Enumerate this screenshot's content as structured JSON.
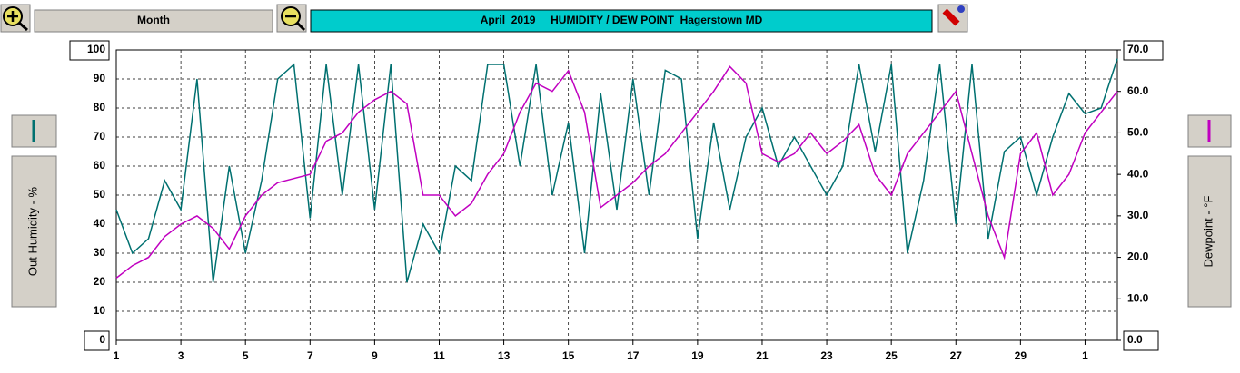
{
  "ui": {
    "period_button": "Month"
  },
  "chart_data": {
    "type": "line",
    "title": "April  2019     HUMIDITY / DEW POINT  Hagerstown MD",
    "y_label": "Out Humidity - %",
    "y2_label": "Dewpoint - °F",
    "grid": true,
    "xlim": [
      0,
      31
    ],
    "xticks": [
      {
        "value": 0,
        "label": "1"
      },
      {
        "value": 2,
        "label": "3"
      },
      {
        "value": 4,
        "label": "5"
      },
      {
        "value": 6,
        "label": "7"
      },
      {
        "value": 8,
        "label": "9"
      },
      {
        "value": 10,
        "label": "11"
      },
      {
        "value": 12,
        "label": "13"
      },
      {
        "value": 14,
        "label": "15"
      },
      {
        "value": 16,
        "label": "17"
      },
      {
        "value": 18,
        "label": "19"
      },
      {
        "value": 20,
        "label": "21"
      },
      {
        "value": 22,
        "label": "23"
      },
      {
        "value": 24,
        "label": "25"
      },
      {
        "value": 26,
        "label": "27"
      },
      {
        "value": 28,
        "label": "29"
      },
      {
        "value": 30,
        "label": "1"
      }
    ],
    "ylim": [
      0,
      100
    ],
    "yticks": [
      0,
      10,
      20,
      30,
      40,
      50,
      60,
      70,
      80,
      90,
      100
    ],
    "y2lim": [
      0,
      70
    ],
    "y2ticks": [
      {
        "value": 0,
        "label": "0.0"
      },
      {
        "value": 10,
        "label": "10.0"
      },
      {
        "value": 20,
        "label": "20.0"
      },
      {
        "value": 30,
        "label": "30.0"
      },
      {
        "value": 40,
        "label": "40.0"
      },
      {
        "value": 50,
        "label": "50.0"
      },
      {
        "value": 60,
        "label": "60.0"
      },
      {
        "value": 70,
        "label": "70.0"
      }
    ],
    "x": [
      0,
      0.5,
      1,
      1.5,
      2,
      2.5,
      3,
      3.5,
      4,
      4.5,
      5,
      5.5,
      6,
      6.5,
      7,
      7.5,
      8,
      8.5,
      9,
      9.5,
      10,
      10.5,
      11,
      11.5,
      12,
      12.5,
      13,
      13.5,
      14,
      14.5,
      15,
      15.5,
      16,
      16.5,
      17,
      17.5,
      18,
      18.5,
      19,
      19.5,
      20,
      20.5,
      21,
      21.5,
      22,
      22.5,
      23,
      23.5,
      24,
      24.5,
      25,
      25.5,
      26,
      26.5,
      27,
      27.5,
      28,
      28.5,
      29,
      29.5,
      30,
      30.5,
      31
    ],
    "series": [
      {
        "name": "Out Humidity",
        "color": "#007070",
        "values": [
          45,
          30,
          35,
          55,
          45,
          90,
          20,
          60,
          30,
          55,
          90,
          95,
          42,
          95,
          50,
          95,
          45,
          95,
          20,
          40,
          30,
          60,
          55,
          95,
          95,
          60,
          95,
          50,
          75,
          30,
          85,
          45,
          90,
          50,
          93,
          90,
          35,
          75,
          45,
          70,
          80,
          60,
          70,
          60,
          50,
          60,
          95,
          65,
          95,
          30,
          55,
          95,
          40,
          95,
          35,
          65,
          70,
          50,
          70,
          85,
          78,
          80,
          97
        ]
      },
      {
        "name": "Dewpoint",
        "color": "#c000c0",
        "axis": "y2",
        "values": [
          15,
          18,
          20,
          25,
          28,
          30,
          27,
          22,
          30,
          35,
          38,
          39,
          40,
          48,
          50,
          55,
          58,
          60,
          57,
          35,
          35,
          30,
          33,
          40,
          45,
          55,
          62,
          60,
          65,
          55,
          32,
          35,
          38,
          42,
          45,
          50,
          55,
          60,
          66,
          62,
          45,
          43,
          45,
          50,
          45,
          48,
          52,
          40,
          35,
          45,
          50,
          55,
          60,
          45,
          30,
          20,
          45,
          50,
          35,
          40,
          50,
          55,
          60
        ]
      }
    ]
  }
}
